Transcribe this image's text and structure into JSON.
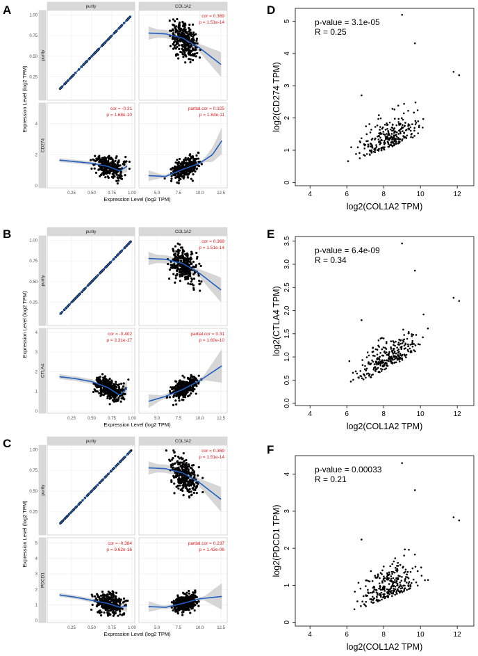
{
  "labels": {
    "A": "A",
    "B": "B",
    "C": "C",
    "D": "D",
    "E": "E",
    "F": "F"
  },
  "colors": {
    "accent": "#1f5fbf",
    "annotation": "#e41a1c",
    "ribbon": "#c8c8c8",
    "points": "#000000"
  },
  "chart_data": [
    {
      "type": "scatter",
      "panel": "A",
      "x_axis_label": "Expression Level (log2 TPM)",
      "y_axis_label": "Expression Level (log2 TPM)",
      "col_strips": [
        "purity",
        "COL1A2"
      ],
      "row_labels": [
        "purity",
        "CD274"
      ],
      "purity_ticks": [
        "0.25",
        "0.50",
        "0.75",
        "1.00"
      ],
      "col1a2_ticks": [
        "5.0",
        "7.5",
        "10.0",
        "12.5"
      ],
      "row_ticks": [
        [
          "0.25",
          "0.50",
          "0.75",
          "1.00"
        ],
        [
          "0",
          "2",
          "4"
        ]
      ],
      "annotations": {
        "top": [
          "cor = 0.369",
          "p = 1.51e-14"
        ],
        "left": [
          "cor = -0.31",
          "p = 1.68e-10"
        ],
        "right": [
          "partial.cor = 0.325",
          "p = 1.84e-11"
        ]
      },
      "gene_ylim": [
        0,
        5.2
      ],
      "gene_trend_vs_purity": [
        [
          0.1,
          1.65
        ],
        [
          0.3,
          1.55
        ],
        [
          0.5,
          1.45
        ],
        [
          0.7,
          1.25
        ],
        [
          0.85,
          0.95
        ],
        [
          0.95,
          1.3
        ]
      ],
      "gene_trend_vs_col1a2": [
        [
          4.0,
          0.65
        ],
        [
          6.0,
          0.6
        ],
        [
          8.0,
          1.05
        ],
        [
          10.0,
          1.45
        ],
        [
          11.5,
          2.0
        ],
        [
          12.6,
          2.9
        ]
      ],
      "purity_trend_vs_col1a2": [
        [
          4.0,
          0.78
        ],
        [
          6.0,
          0.77
        ],
        [
          8.0,
          0.72
        ],
        [
          10.0,
          0.6
        ],
        [
          12.5,
          0.4
        ]
      ]
    },
    {
      "type": "scatter",
      "panel": "B",
      "x_axis_label": "Expression Level (log2 TPM)",
      "y_axis_label": "Expression Level (log2 TPM)",
      "col_strips": [
        "purity",
        "COL1A2"
      ],
      "row_labels": [
        "purity",
        "CTLA4"
      ],
      "purity_ticks": [
        "0.25",
        "0.50",
        "0.75",
        "1.00"
      ],
      "col1a2_ticks": [
        "5.0",
        "7.5",
        "10.0",
        "12.5"
      ],
      "row_ticks": [
        [
          "0.25",
          "0.50",
          "0.75",
          "1.00"
        ],
        [
          "0",
          "1",
          "2",
          "3",
          "4"
        ]
      ],
      "annotations": {
        "top": [
          "cor = 0.369",
          "p = 1.51e-14"
        ],
        "left": [
          "cor = -0.402",
          "p = 3.31e-17"
        ],
        "right": [
          "partial.cor = 0.31",
          "p = 1.60e-10"
        ]
      },
      "gene_ylim": [
        0,
        4.1
      ],
      "gene_trend_vs_purity": [
        [
          0.1,
          1.75
        ],
        [
          0.3,
          1.65
        ],
        [
          0.5,
          1.5
        ],
        [
          0.7,
          1.2
        ],
        [
          0.85,
          0.8
        ],
        [
          0.95,
          1.25
        ]
      ],
      "gene_trend_vs_col1a2": [
        [
          4.0,
          0.5
        ],
        [
          6.0,
          0.75
        ],
        [
          8.0,
          1.1
        ],
        [
          10.0,
          1.55
        ],
        [
          12.6,
          2.3
        ]
      ],
      "purity_trend_vs_col1a2": [
        [
          4.0,
          0.78
        ],
        [
          6.0,
          0.77
        ],
        [
          8.0,
          0.72
        ],
        [
          10.0,
          0.6
        ],
        [
          12.5,
          0.4
        ]
      ]
    },
    {
      "type": "scatter",
      "panel": "C",
      "x_axis_label": "Expression Level (log2 TPM)",
      "y_axis_label": "Expression Level (log2 TPM)",
      "col_strips": [
        "purity",
        "COL1A2"
      ],
      "row_labels": [
        "purity",
        "PDCD1"
      ],
      "purity_ticks": [
        "0.25",
        "0.50",
        "0.75",
        "1.00"
      ],
      "col1a2_ticks": [
        "5.0",
        "7.5",
        "10.0",
        "12.5"
      ],
      "row_ticks": [
        [
          "0.25",
          "0.50",
          "0.75",
          "1.00"
        ],
        [
          "0",
          "1",
          "2",
          "3",
          "4",
          "5"
        ]
      ],
      "annotations": {
        "top": [
          "cor = 0.369",
          "p = 1.51e-14"
        ],
        "left": [
          "cor = -0.384",
          "p = 9.62e-16"
        ],
        "right": [
          "partial.cor = 0.237",
          "p = 1.43e-06"
        ]
      },
      "gene_ylim": [
        0,
        5.2
      ],
      "gene_trend_vs_purity": [
        [
          0.1,
          1.65
        ],
        [
          0.3,
          1.5
        ],
        [
          0.5,
          1.3
        ],
        [
          0.7,
          1.1
        ],
        [
          0.85,
          0.85
        ],
        [
          0.95,
          0.95
        ]
      ],
      "gene_trend_vs_col1a2": [
        [
          4.0,
          0.9
        ],
        [
          6.0,
          0.85
        ],
        [
          8.0,
          1.1
        ],
        [
          10.0,
          1.4
        ],
        [
          12.6,
          1.55
        ]
      ],
      "purity_trend_vs_col1a2": [
        [
          4.0,
          0.78
        ],
        [
          6.0,
          0.77
        ],
        [
          8.0,
          0.72
        ],
        [
          10.0,
          0.6
        ],
        [
          12.5,
          0.4
        ]
      ]
    },
    {
      "type": "scatter",
      "panel": "D",
      "xlabel": "log2(COL1A2 TPM)",
      "ylabel": "log2(CD274 TPM)",
      "stats": [
        "p-value = 3.1e-05",
        "R = 0.25"
      ],
      "xticks": [
        "4",
        "6",
        "8",
        "10",
        "12"
      ],
      "yticks": [
        "0",
        "1",
        "2",
        "3",
        "4",
        "5"
      ],
      "xlim": [
        3.2,
        12.9
      ],
      "ylim": [
        -0.1,
        5.4
      ],
      "trend": {
        "slope": 0.25,
        "intercept": -0.85
      },
      "y_max": 5.2
    },
    {
      "type": "scatter",
      "panel": "E",
      "xlabel": "log2(COL1A2 TPM)",
      "ylabel": "log2(CTLA4 TPM)",
      "stats": [
        "p-value = 6.4e-09",
        "R = 0.34"
      ],
      "xticks": [
        "4",
        "6",
        "8",
        "10",
        "12"
      ],
      "yticks": [
        "0.0",
        "0.5",
        "1.0",
        "1.5",
        "2.0",
        "2.5",
        "3.0",
        "3.5"
      ],
      "xlim": [
        3.2,
        12.9
      ],
      "ylim": [
        -0.05,
        3.6
      ],
      "trend": {
        "slope": 0.22,
        "intercept": -0.9
      },
      "y_max": 3.45
    },
    {
      "type": "scatter",
      "panel": "F",
      "xlabel": "log2(COL1A2 TPM)",
      "ylabel": "log2(PDCD1 TPM)",
      "stats": [
        "p-value = 0.00033",
        "R = 0.21"
      ],
      "xticks": [
        "4",
        "6",
        "8",
        "10",
        "12"
      ],
      "yticks": [
        "0",
        "1",
        "2",
        "3",
        "4"
      ],
      "xlim": [
        3.2,
        12.9
      ],
      "ylim": [
        -0.1,
        4.5
      ],
      "trend": {
        "slope": 0.19,
        "intercept": -0.75
      },
      "y_max": 4.3
    }
  ]
}
